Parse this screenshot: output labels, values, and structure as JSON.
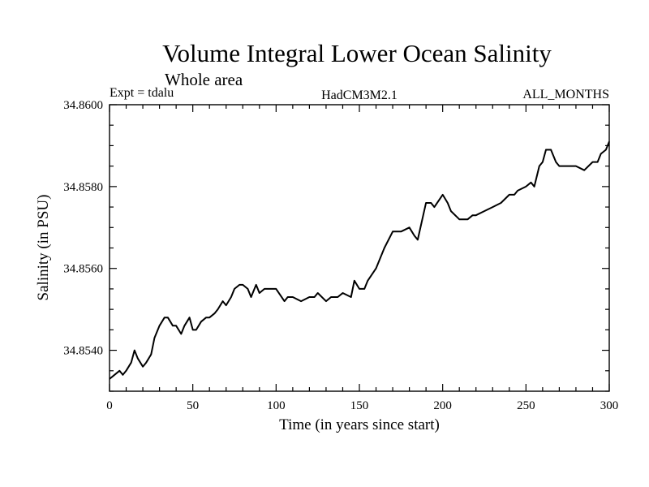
{
  "chart_data": {
    "type": "line",
    "title": "Volume Integral Lower Ocean Salinity",
    "subtitle": "Whole area",
    "top_labels": {
      "left": "Expt = tdalu",
      "center": "HadCM3M2.1",
      "right": "ALL_MONTHS"
    },
    "xlabel": "Time (in years since start)",
    "ylabel": "Salinity (in PSU)",
    "xlim": [
      0,
      300
    ],
    "ylim": [
      34.853,
      34.86
    ],
    "x_ticks": [
      0,
      50,
      100,
      150,
      200,
      250,
      300
    ],
    "x_tick_labels": [
      "0",
      "50",
      "100",
      "150",
      "200",
      "250",
      "300"
    ],
    "y_ticks": [
      34.854,
      34.856,
      34.858,
      34.86
    ],
    "y_tick_labels": [
      "34.8540",
      "34.8560",
      "34.8580",
      "34.8600"
    ],
    "series": [
      {
        "name": "Salinity",
        "color": "#000000",
        "x": [
          0,
          3,
          6,
          8,
          10,
          13,
          15,
          17,
          20,
          22,
          25,
          27,
          30,
          33,
          35,
          38,
          40,
          43,
          45,
          48,
          50,
          52,
          55,
          58,
          60,
          63,
          65,
          68,
          70,
          73,
          75,
          78,
          80,
          83,
          85,
          88,
          90,
          93,
          95,
          100,
          105,
          107,
          110,
          115,
          120,
          123,
          125,
          130,
          133,
          137,
          140,
          145,
          147,
          150,
          153,
          155,
          160,
          165,
          170,
          175,
          180,
          183,
          185,
          190,
          193,
          195,
          200,
          203,
          205,
          210,
          215,
          218,
          220,
          225,
          230,
          235,
          240,
          243,
          245,
          250,
          253,
          255,
          258,
          260,
          262,
          265,
          268,
          270,
          275,
          280,
          285,
          290,
          293,
          295,
          298,
          300
        ],
        "y": [
          34.8533,
          34.8534,
          34.8535,
          34.8534,
          34.8535,
          34.8537,
          34.854,
          34.8538,
          34.8536,
          34.8537,
          34.8539,
          34.8543,
          34.8546,
          34.8548,
          34.8548,
          34.8546,
          34.8546,
          34.8544,
          34.8546,
          34.8548,
          34.8545,
          34.8545,
          34.8547,
          34.8548,
          34.8548,
          34.8549,
          34.855,
          34.8552,
          34.8551,
          34.8553,
          34.8555,
          34.8556,
          34.8556,
          34.8555,
          34.8553,
          34.8556,
          34.8554,
          34.8555,
          34.8555,
          34.8555,
          34.8552,
          34.8553,
          34.8553,
          34.8552,
          34.8553,
          34.8553,
          34.8554,
          34.8552,
          34.8553,
          34.8553,
          34.8554,
          34.8553,
          34.8557,
          34.8555,
          34.8555,
          34.8557,
          34.856,
          34.8565,
          34.8569,
          34.8569,
          34.857,
          34.8568,
          34.8567,
          34.8576,
          34.8576,
          34.8575,
          34.8578,
          34.8576,
          34.8574,
          34.8572,
          34.8572,
          34.8573,
          34.8573,
          34.8574,
          34.8575,
          34.8576,
          34.8578,
          34.8578,
          34.8579,
          34.858,
          34.8581,
          34.858,
          34.8585,
          34.8586,
          34.8589,
          34.8589,
          34.8586,
          34.8585,
          34.8585,
          34.8585,
          34.8584,
          34.8586,
          34.8586,
          34.8588,
          34.8589,
          34.8591
        ]
      }
    ]
  }
}
